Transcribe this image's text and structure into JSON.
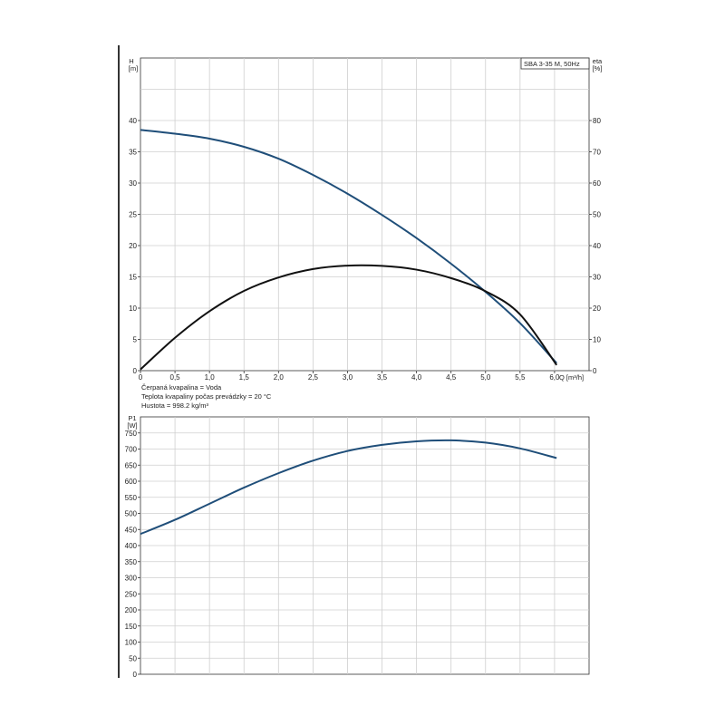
{
  "chart_data": [
    {
      "type": "line",
      "title": "SBA 3-35 M, 50Hz",
      "xlabel": "Q [m³/h]",
      "ylabel": [
        "H",
        "[m]"
      ],
      "ylabel_right": [
        "eta",
        "[%]"
      ],
      "xlim": [
        0,
        6.5
      ],
      "ylim": [
        0,
        50
      ],
      "ylim_right": [
        0,
        100
      ],
      "x_ticks": [
        "0",
        "0,5",
        "1,0",
        "1,5",
        "2,0",
        "2,5",
        "3,0",
        "3,5",
        "4,0",
        "4,5",
        "5,0",
        "5,5",
        "6,0"
      ],
      "y_ticks": [
        "0",
        "5",
        "10",
        "15",
        "20",
        "25",
        "30",
        "35",
        "40"
      ],
      "y_ticks_right": [
        "0",
        "10",
        "20",
        "30",
        "40",
        "50",
        "60",
        "70",
        "80"
      ],
      "grid": true,
      "series": [
        {
          "axis": "left",
          "color": "#1f4e79",
          "points": [
            [
              0,
              38.5
            ],
            [
              0.5,
              37.9
            ],
            [
              1.0,
              37.1
            ],
            [
              1.5,
              35.8
            ],
            [
              2.0,
              33.9
            ],
            [
              2.5,
              31.3
            ],
            [
              3.0,
              28.3
            ],
            [
              3.5,
              24.9
            ],
            [
              4.0,
              21.2
            ],
            [
              4.5,
              17.1
            ],
            [
              5.0,
              12.6
            ],
            [
              5.5,
              7.6
            ],
            [
              6.03,
              1.2
            ]
          ]
        },
        {
          "axis": "right",
          "color": "#111111",
          "points": [
            [
              0,
              0.4
            ],
            [
              0.5,
              10.5
            ],
            [
              1.0,
              19.0
            ],
            [
              1.5,
              25.5
            ],
            [
              2.0,
              29.8
            ],
            [
              2.5,
              32.5
            ],
            [
              3.0,
              33.6
            ],
            [
              3.5,
              33.5
            ],
            [
              4.0,
              32.3
            ],
            [
              4.5,
              29.6
            ],
            [
              5.0,
              25.4
            ],
            [
              5.5,
              18.0
            ],
            [
              6.03,
              1.8
            ]
          ]
        }
      ]
    },
    {
      "type": "line",
      "xlim": [
        0,
        6.5
      ],
      "ylim": [
        0,
        800
      ],
      "ylabel": [
        "P1",
        "[W]"
      ],
      "y_ticks": [
        "0",
        "50",
        "100",
        "150",
        "200",
        "250",
        "300",
        "350",
        "400",
        "450",
        "500",
        "550",
        "600",
        "650",
        "700",
        "750"
      ],
      "grid": true,
      "series": [
        {
          "axis": "left",
          "color": "#1f4e79",
          "points": [
            [
              0,
              436
            ],
            [
              0.5,
              480
            ],
            [
              1.0,
              530
            ],
            [
              1.5,
              580
            ],
            [
              2.0,
              625
            ],
            [
              2.5,
              664
            ],
            [
              3.0,
              694
            ],
            [
              3.5,
              713
            ],
            [
              4.0,
              724
            ],
            [
              4.5,
              727
            ],
            [
              5.0,
              720
            ],
            [
              5.5,
              702
            ],
            [
              6.03,
              672
            ]
          ]
        }
      ]
    }
  ],
  "notes": [
    "Čerpaná kvapalina = Voda",
    "Teplota kvapaliny počas prevádzky = 20 °C",
    "Hustota = 998.2 kg/m³"
  ]
}
